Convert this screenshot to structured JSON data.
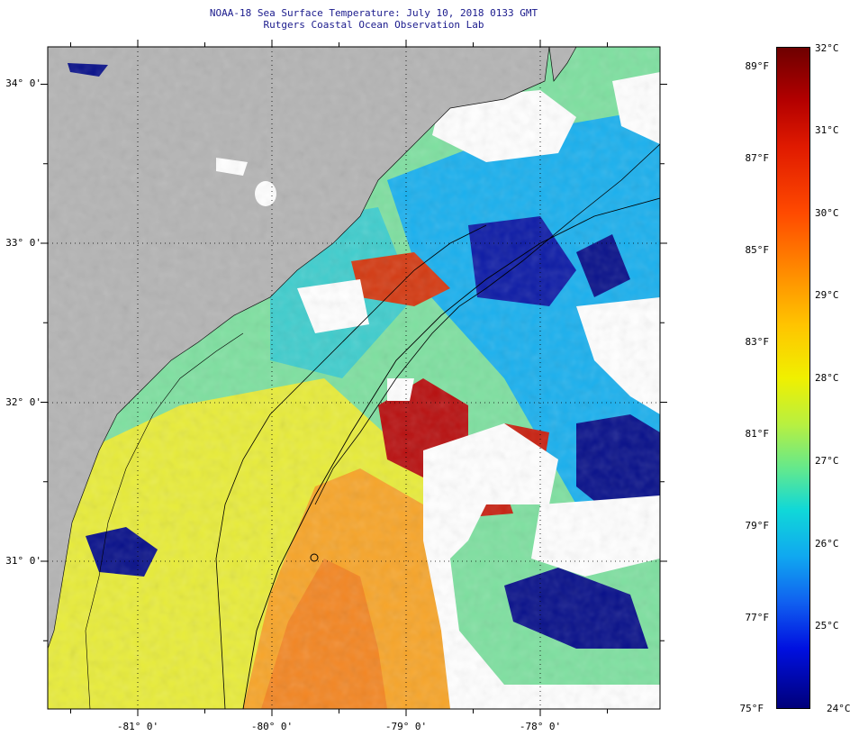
{
  "header": {
    "title_line1": "NOAA-18 Sea Surface Temperature:  July 10, 2018 0133 GMT",
    "title_line2": "Rutgers Coastal Ocean Observation Lab"
  },
  "map": {
    "lat_labels": [
      "34° 0'",
      "33° 0'",
      "32° 0'",
      "31° 0'"
    ],
    "lon_labels": [
      "-81° 0'",
      "-80° 0'",
      "-79° 0'",
      "-78° 0'"
    ],
    "colors": {
      "land": "#b4b4b4",
      "cloud": "#ffffff",
      "water_cool": "#1ab0ee",
      "water_mid": "#7ee0a0",
      "water_warm": "#f2e62a",
      "water_hot": "#f59a1e",
      "water_cold": "#08108a",
      "warm_eddy": "#b81010"
    }
  },
  "colorbar": {
    "fahrenheit_labels": [
      "89°F",
      "87°F",
      "85°F",
      "83°F",
      "81°F",
      "79°F",
      "77°F",
      "75°F"
    ],
    "celsius_labels": [
      "32°C",
      "31°C",
      "30°C",
      "29°C",
      "28°C",
      "27°C",
      "26°C",
      "25°C",
      "24°C"
    ],
    "range_c": [
      24,
      32
    ],
    "range_f": [
      75,
      89
    ]
  }
}
